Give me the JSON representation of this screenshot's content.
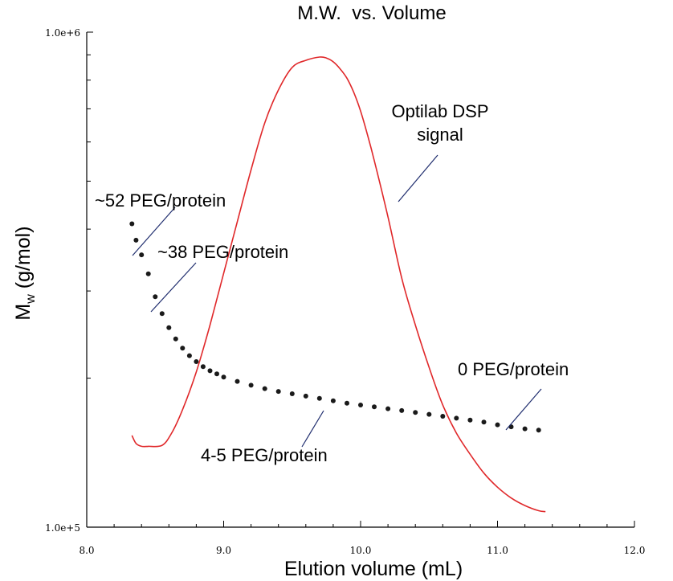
{
  "chart_data": {
    "type": "scatter",
    "title": "M.W.  vs. Volume",
    "xlabel": "Elution volume (mL)",
    "ylabel_main": "M",
    "ylabel_sub": "w",
    "ylabel_unit": " (g/mol)",
    "xlim": [
      8.0,
      12.0
    ],
    "ylim": [
      100000,
      1000000
    ],
    "y_scale": "log",
    "grid": false,
    "x_tick_labels": [
      {
        "value": 8.0,
        "label": "8.0"
      },
      {
        "value": 9.0,
        "label": "9.0"
      },
      {
        "value": 10.0,
        "label": "10.0"
      },
      {
        "value": 11.0,
        "label": "11.0"
      },
      {
        "value": 12.0,
        "label": "12.0"
      }
    ],
    "y_tick_labels": [
      {
        "value": 1000000,
        "label": "1.0e+6"
      },
      {
        "value": 100000,
        "label": "1.0e+5"
      }
    ],
    "series": [
      {
        "name": "Optilab DSP signal",
        "kind": "line",
        "color": "#e0282a",
        "relative_signal": true,
        "x": [
          8.33,
          8.36,
          8.4,
          8.45,
          8.55,
          8.62,
          8.7,
          8.8,
          8.9,
          9.0,
          9.1,
          9.2,
          9.3,
          9.4,
          9.5,
          9.6,
          9.7,
          9.75,
          9.8,
          9.85,
          9.9,
          9.95,
          10.0,
          10.05,
          10.1,
          10.2,
          10.3,
          10.4,
          10.5,
          10.6,
          10.7,
          10.8,
          10.9,
          11.0,
          11.1,
          11.2,
          11.3,
          11.35
        ],
        "y": [
          0.195,
          0.178,
          0.172,
          0.172,
          0.174,
          0.2,
          0.25,
          0.33,
          0.43,
          0.54,
          0.65,
          0.76,
          0.86,
          0.93,
          0.978,
          0.993,
          1.0,
          0.998,
          0.99,
          0.975,
          0.955,
          0.925,
          0.885,
          0.835,
          0.78,
          0.66,
          0.53,
          0.43,
          0.34,
          0.26,
          0.2,
          0.155,
          0.115,
          0.085,
          0.062,
          0.046,
          0.035,
          0.033
        ]
      },
      {
        "name": "Mw",
        "kind": "scatter",
        "color": "#1a1a1a",
        "x": [
          8.33,
          8.36,
          8.4,
          8.45,
          8.5,
          8.55,
          8.6,
          8.65,
          8.7,
          8.75,
          8.8,
          8.85,
          8.9,
          8.95,
          9.0,
          9.1,
          9.2,
          9.3,
          9.4,
          9.5,
          9.6,
          9.7,
          9.8,
          9.9,
          10.0,
          10.1,
          10.2,
          10.3,
          10.4,
          10.5,
          10.6,
          10.7,
          10.8,
          10.9,
          11.0,
          11.1,
          11.2,
          11.3
        ],
        "y": [
          410000,
          380000,
          355000,
          325000,
          292000,
          270000,
          253000,
          240000,
          230000,
          222000,
          216000,
          211000,
          207000,
          204000,
          201000,
          197000,
          193500,
          190500,
          188000,
          186000,
          184000,
          182000,
          180000,
          178000,
          176500,
          175000,
          173500,
          172000,
          170500,
          169000,
          167500,
          166000,
          164500,
          163000,
          161000,
          159500,
          158000,
          157000
        ]
      }
    ],
    "annotations": [
      {
        "text": "~52 PEG/protein",
        "x": 8.35,
        "y": 415000
      },
      {
        "text": "~38 PEG/protein",
        "x": 8.52,
        "y": 300000
      },
      {
        "text": "Optilab DSP",
        "x": 10.27,
        "y": 780000
      },
      {
        "text": "signal",
        "x": 10.27,
        "y": 780000
      },
      {
        "text": "0 PEG/protein",
        "x": 11.05,
        "y": 158000
      },
      {
        "text": "4-5 PEG/protein",
        "x": 9.75,
        "y": 177000
      }
    ]
  }
}
